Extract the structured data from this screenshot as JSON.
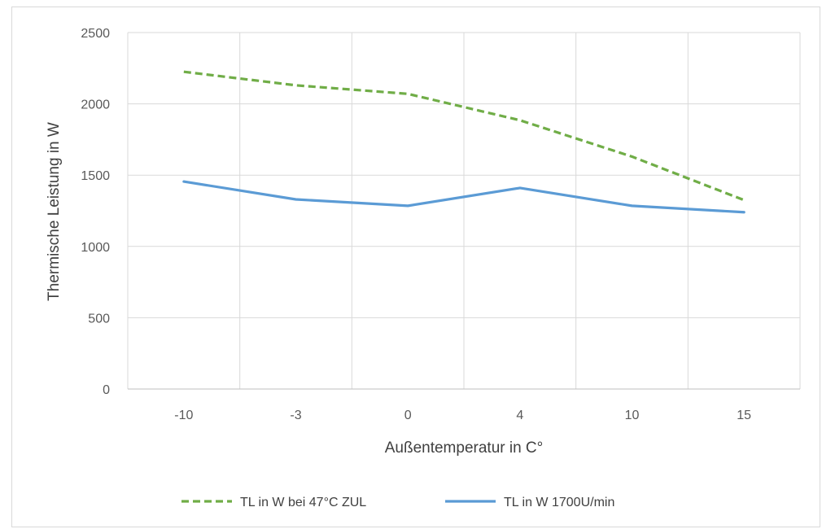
{
  "chart_data": {
    "type": "line",
    "title": "",
    "xlabel": "Außentemperatur in C°",
    "ylabel": "Thermische Leistung in W",
    "categories": [
      "-10",
      "-3",
      "0",
      "4",
      "10",
      "15"
    ],
    "ylim": [
      0,
      2500
    ],
    "yticks": [
      0,
      500,
      1000,
      1500,
      2000,
      2500
    ],
    "grid": true,
    "legend_position": "bottom",
    "series": [
      {
        "name": "TL in W bei 47°C ZUL",
        "values": [
          2225,
          2130,
          2070,
          1885,
          1630,
          1325
        ],
        "color": "#70ad47",
        "style": "dashed"
      },
      {
        "name": "TL in W 1700U/min",
        "values": [
          1455,
          1330,
          1285,
          1410,
          1285,
          1240
        ],
        "color": "#5b9bd5",
        "style": "solid"
      }
    ]
  }
}
